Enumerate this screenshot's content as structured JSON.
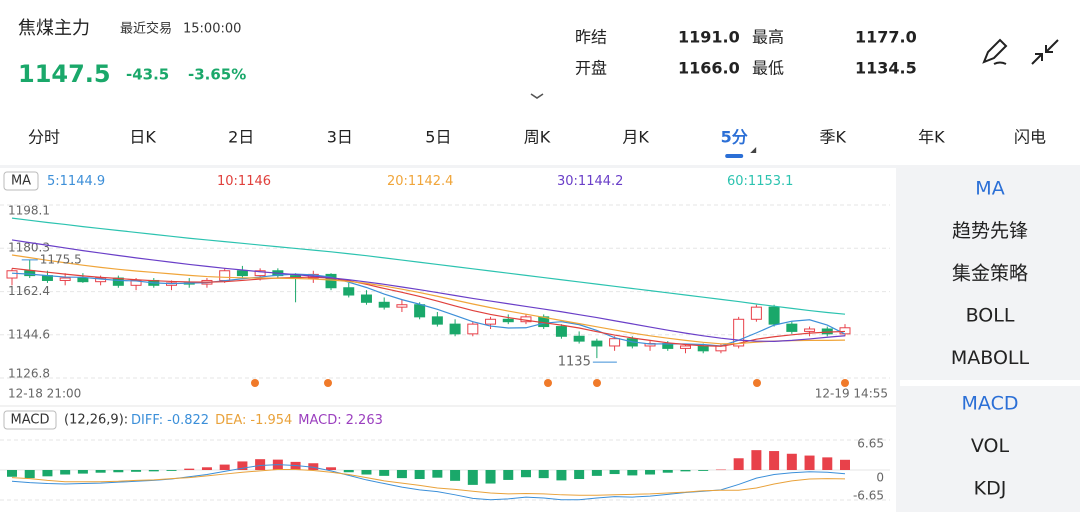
{
  "header": {
    "name": "焦煤主力",
    "status": "最近交易",
    "time": "15:00:00",
    "price": 1147.5,
    "change": -43.5,
    "change_pct": "-3.65%",
    "stats": [
      {
        "label": "昨结",
        "value": "1191.0"
      },
      {
        "label": "最高",
        "value": "1177.0"
      },
      {
        "label": "开盘",
        "value": "1166.0"
      },
      {
        "label": "最低",
        "value": "1134.5"
      }
    ]
  },
  "tabs": [
    "分时",
    "日K",
    "2日",
    "3日",
    "5日",
    "周K",
    "月K",
    "5分",
    "季K",
    "年K",
    "闪电"
  ],
  "active_tab": 7,
  "sidebar": {
    "main": [
      "MA",
      "趋势先锋",
      "集金策略",
      "BOLL",
      "MABOLL"
    ],
    "sub": [
      "MACD",
      "VOL",
      "KDJ"
    ]
  },
  "chart_data": [
    {
      "type": "candlestick",
      "legend_tag": "MA",
      "x_start": "12-18 21:00",
      "x_end": "12-19 14:55",
      "up_color": "#e8414a",
      "down_color": "#1aa86a",
      "ylim": [
        1126.8,
        1198.1
      ],
      "yticks": [
        1198.1,
        1180.3,
        1162.4,
        1144.6,
        1126.8
      ],
      "grid": true,
      "open": [
        1168,
        1171,
        1169,
        1167,
        1168,
        1166.5,
        1168,
        1165,
        1167,
        1165,
        1166,
        1165.5,
        1167,
        1171,
        1169,
        1171,
        1169,
        1168,
        1169.5,
        1164,
        1161,
        1158,
        1156,
        1157,
        1152,
        1149,
        1145,
        1149,
        1151,
        1150,
        1152,
        1148,
        1144,
        1142,
        1140,
        1143,
        1140,
        1141,
        1139,
        1140,
        1138,
        1140,
        1151,
        1156,
        1149,
        1146,
        1147,
        1145
      ],
      "high": [
        1172,
        1175.5,
        1171,
        1170,
        1170,
        1169,
        1169,
        1168,
        1168,
        1167,
        1168,
        1168,
        1172,
        1173,
        1172,
        1172,
        1170,
        1171,
        1170,
        1166,
        1163,
        1160,
        1159,
        1158,
        1154,
        1151,
        1150,
        1152,
        1153,
        1153,
        1153,
        1149,
        1146,
        1143,
        1144,
        1144,
        1142,
        1142,
        1141,
        1141,
        1141,
        1152,
        1157,
        1157,
        1150,
        1148,
        1148,
        1149
      ],
      "low": [
        1165,
        1168,
        1166,
        1165,
        1166,
        1165,
        1164,
        1163,
        1164,
        1163,
        1164,
        1164,
        1166,
        1168,
        1167,
        1168,
        1158,
        1166,
        1163,
        1160,
        1157,
        1155,
        1154,
        1151,
        1148,
        1144,
        1144,
        1147,
        1149,
        1149,
        1147,
        1143,
        1141,
        1135,
        1138,
        1139,
        1138,
        1138,
        1137,
        1137,
        1137,
        1139,
        1150,
        1148,
        1145,
        1144,
        1144,
        1144
      ],
      "close": [
        1171,
        1169,
        1167,
        1168,
        1166.5,
        1168,
        1165,
        1167,
        1165,
        1166,
        1165.5,
        1167,
        1171,
        1169,
        1171,
        1169,
        1168,
        1169.5,
        1164,
        1161,
        1158,
        1156,
        1157,
        1152,
        1149,
        1145,
        1149,
        1151,
        1150,
        1152,
        1148,
        1144,
        1142,
        1140,
        1143,
        1140,
        1141,
        1139,
        1140,
        1138,
        1140,
        1151,
        1156,
        1149,
        1146,
        1147,
        1145,
        1147.5
      ],
      "high_label": {
        "index": 1,
        "value": 1175.5
      },
      "low_label": {
        "index": 33,
        "value": 1135
      },
      "series": [
        {
          "name": "5:",
          "color": "#3d8fd8",
          "values": [
            1170.0,
            1169.6,
            1169.0,
            1168.4,
            1168.3,
            1167.6,
            1167.0,
            1166.8,
            1166.0,
            1165.7,
            1165.9,
            1166.1,
            1166.9,
            1167.7,
            1168.4,
            1169.2,
            1169.6,
            1169.3,
            1168.4,
            1166.3,
            1164.1,
            1161.4,
            1159.1,
            1157.2,
            1155.1,
            1152.6,
            1150.0,
            1148.2,
            1147.4,
            1147.5,
            1149.4,
            1150.0,
            1148.8,
            1146.4,
            1143.4,
            1141.7,
            1140.8,
            1140.9,
            1140.8,
            1140.6,
            1140.0,
            1142.4,
            1145.4,
            1148.6,
            1150.2,
            1150.8,
            1148.6,
            1144.9
          ]
        },
        {
          "name": "10:",
          "color": "#e0403c",
          "values": [
            1172.0,
            1171.2,
            1170.4,
            1169.6,
            1168.9,
            1168.3,
            1167.8,
            1167.3,
            1166.9,
            1166.6,
            1166.4,
            1166.3,
            1166.5,
            1167.0,
            1167.6,
            1168.0,
            1168.2,
            1168.4,
            1167.9,
            1166.9,
            1165.4,
            1163.7,
            1162.1,
            1160.4,
            1158.5,
            1156.5,
            1154.6,
            1153.0,
            1151.7,
            1150.6,
            1149.6,
            1148.6,
            1147.4,
            1145.9,
            1144.5,
            1143.3,
            1142.3,
            1141.3,
            1140.6,
            1140.1,
            1139.9,
            1141.1,
            1142.8,
            1143.8,
            1144.6,
            1145.3,
            1145.7,
            1146
          ]
        },
        {
          "name": "20:",
          "color": "#f0a53a",
          "values": [
            1177.5,
            1176.4,
            1175.3,
            1174.3,
            1173.3,
            1172.4,
            1171.6,
            1170.9,
            1170.3,
            1169.7,
            1169.1,
            1168.6,
            1168.3,
            1168.1,
            1168.0,
            1167.9,
            1167.8,
            1167.6,
            1167.2,
            1166.6,
            1165.8,
            1164.7,
            1163.4,
            1162.0,
            1160.5,
            1158.9,
            1157.3,
            1155.8,
            1154.4,
            1153.1,
            1151.8,
            1150.5,
            1149.2,
            1147.9,
            1146.6,
            1145.3,
            1144.2,
            1143.2,
            1142.3,
            1141.5,
            1140.9,
            1141.0,
            1141.6,
            1142.0,
            1142.2,
            1142.3,
            1142.3,
            1142.4
          ]
        },
        {
          "name": "30:",
          "color": "#6a3fc8",
          "values": [
            1183.7,
            1182.6,
            1181.5,
            1180.4,
            1179.3,
            1178.3,
            1177.3,
            1176.3,
            1175.4,
            1174.5,
            1173.6,
            1172.8,
            1172.0,
            1171.3,
            1170.6,
            1170.0,
            1169.4,
            1168.8,
            1168.1,
            1167.3,
            1166.4,
            1165.4,
            1164.3,
            1163.2,
            1162.0,
            1160.8,
            1159.6,
            1158.5,
            1157.4,
            1156.3,
            1155.2,
            1154.1,
            1152.9,
            1151.7,
            1150.4,
            1149.1,
            1147.8,
            1146.5,
            1145.3,
            1144.2,
            1143.2,
            1142.4,
            1142.0,
            1141.9,
            1142.3,
            1142.9,
            1143.6,
            1144.2
          ]
        },
        {
          "name": "60:",
          "color": "#2cc3b0",
          "values": [
            1192.7,
            1191.8,
            1190.9,
            1190.1,
            1189.2,
            1188.4,
            1187.6,
            1186.8,
            1186.0,
            1185.2,
            1184.4,
            1183.7,
            1183.0,
            1182.3,
            1181.6,
            1180.9,
            1180.2,
            1179.5,
            1178.8,
            1178.0,
            1177.2,
            1176.3,
            1175.4,
            1174.5,
            1173.6,
            1172.7,
            1171.8,
            1170.9,
            1170.0,
            1169.1,
            1168.2,
            1167.3,
            1166.4,
            1165.5,
            1164.6,
            1163.7,
            1162.8,
            1161.9,
            1161.0,
            1160.1,
            1159.2,
            1158.3,
            1157.3,
            1156.4,
            1155.5,
            1154.6,
            1153.8,
            1153.1
          ]
        }
      ]
    },
    {
      "type": "macd",
      "legend_tag": "MACD",
      "params": "(12,26,9):",
      "up_color": "#e8414a",
      "down_color": "#1aa86a",
      "ylim": [
        -6.65,
        6.65
      ],
      "yticks": [
        6.65,
        0,
        -6.65
      ],
      "series": [
        {
          "name": "DIFF:",
          "color": "#3b8fd9",
          "style": "line",
          "values": [
            -2.5,
            -2.8,
            -3.0,
            -3.1,
            -3.0,
            -2.9,
            -2.7,
            -2.5,
            -2.3,
            -2.0,
            -1.5,
            -1.0,
            -0.3,
            0.4,
            1.0,
            1.2,
            1.0,
            0.6,
            -0.2,
            -1.2,
            -2.2,
            -3.0,
            -3.8,
            -4.4,
            -4.8,
            -5.5,
            -6.3,
            -6.6,
            -6.4,
            -6.0,
            -6.2,
            -6.6,
            -6.6,
            -6.2,
            -5.9,
            -6.0,
            -5.8,
            -5.4,
            -5.0,
            -4.7,
            -4.4,
            -3.2,
            -1.8,
            -1.0,
            -0.6,
            -0.4,
            -0.5,
            -0.822
          ]
        },
        {
          "name": "DEA:",
          "color": "#e9a23b",
          "style": "line",
          "values": [
            -1.7,
            -1.9,
            -2.3,
            -2.6,
            -2.6,
            -2.6,
            -2.5,
            -2.3,
            -2.2,
            -1.9,
            -1.7,
            -1.3,
            -0.9,
            -0.5,
            -0.2,
            0.1,
            0.1,
            -0.1,
            -0.5,
            -1.0,
            -1.7,
            -2.4,
            -2.9,
            -3.4,
            -4.0,
            -4.3,
            -4.7,
            -5.1,
            -5.3,
            -5.2,
            -5.3,
            -5.5,
            -5.6,
            -5.6,
            -5.5,
            -5.4,
            -5.3,
            -5.1,
            -4.9,
            -4.6,
            -4.5,
            -4.5,
            -4.0,
            -3.1,
            -2.4,
            -2.0,
            -1.9,
            -1.954
          ]
        },
        {
          "name": "MACD:",
          "color": "#9b3fbf",
          "style": "histogram",
          "values": [
            -1.5,
            -1.8,
            -1.4,
            -1.0,
            -0.8,
            -0.6,
            -0.5,
            -0.4,
            -0.3,
            -0.2,
            0.3,
            0.6,
            1.2,
            1.9,
            2.4,
            2.3,
            1.8,
            1.5,
            0.6,
            -0.5,
            -1.0,
            -1.3,
            -1.8,
            -2.0,
            -1.7,
            -2.4,
            -3.3,
            -3.0,
            -2.2,
            -1.6,
            -1.8,
            -2.3,
            -2.0,
            -1.3,
            -0.9,
            -1.2,
            -1.0,
            -0.6,
            -0.3,
            -0.2,
            0.1,
            2.6,
            4.4,
            4.2,
            3.6,
            3.2,
            2.8,
            2.263
          ]
        }
      ]
    }
  ]
}
